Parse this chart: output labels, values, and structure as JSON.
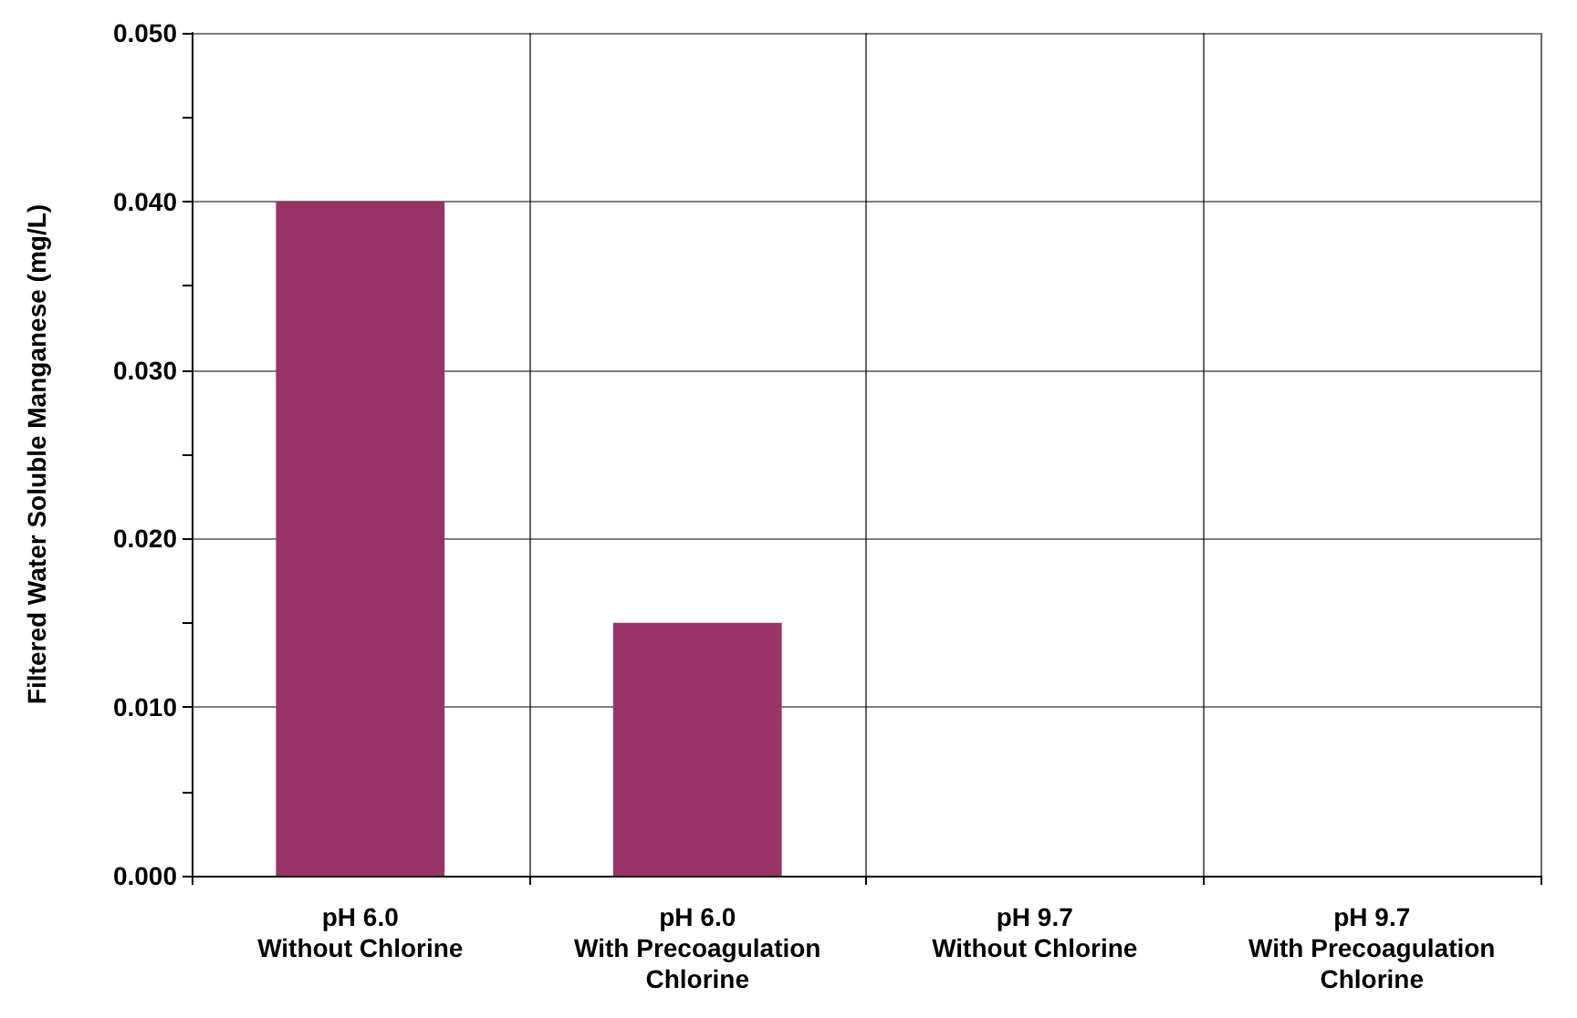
{
  "chart_data": {
    "type": "bar",
    "ylabel": "Filtered Water Soluble Manganese (mg/L)",
    "categories": [
      "pH 6.0\nWithout Chlorine",
      "pH 6.0\nWith Precoagulation\nChlorine",
      "pH 9.7\nWithout Chlorine",
      "pH 9.7\nWith Precoagulation\nChlorine"
    ],
    "values": [
      0.04,
      0.015,
      0,
      0
    ],
    "color": "#993366",
    "ylim": [
      0,
      0.05
    ],
    "yticks": [
      {
        "value": 0,
        "label": "0.000"
      },
      {
        "value": 0.005,
        "label": null
      },
      {
        "value": 0.01,
        "label": "0.010"
      },
      {
        "value": 0.015,
        "label": null
      },
      {
        "value": 0.02,
        "label": "0.020"
      },
      {
        "value": 0.025,
        "label": null
      },
      {
        "value": 0.03,
        "label": "0.030"
      },
      {
        "value": 0.035,
        "label": null
      },
      {
        "value": 0.04,
        "label": "0.040"
      },
      {
        "value": 0.045,
        "label": null
      },
      {
        "value": 0.05,
        "label": "0.050"
      }
    ],
    "grid": true
  }
}
